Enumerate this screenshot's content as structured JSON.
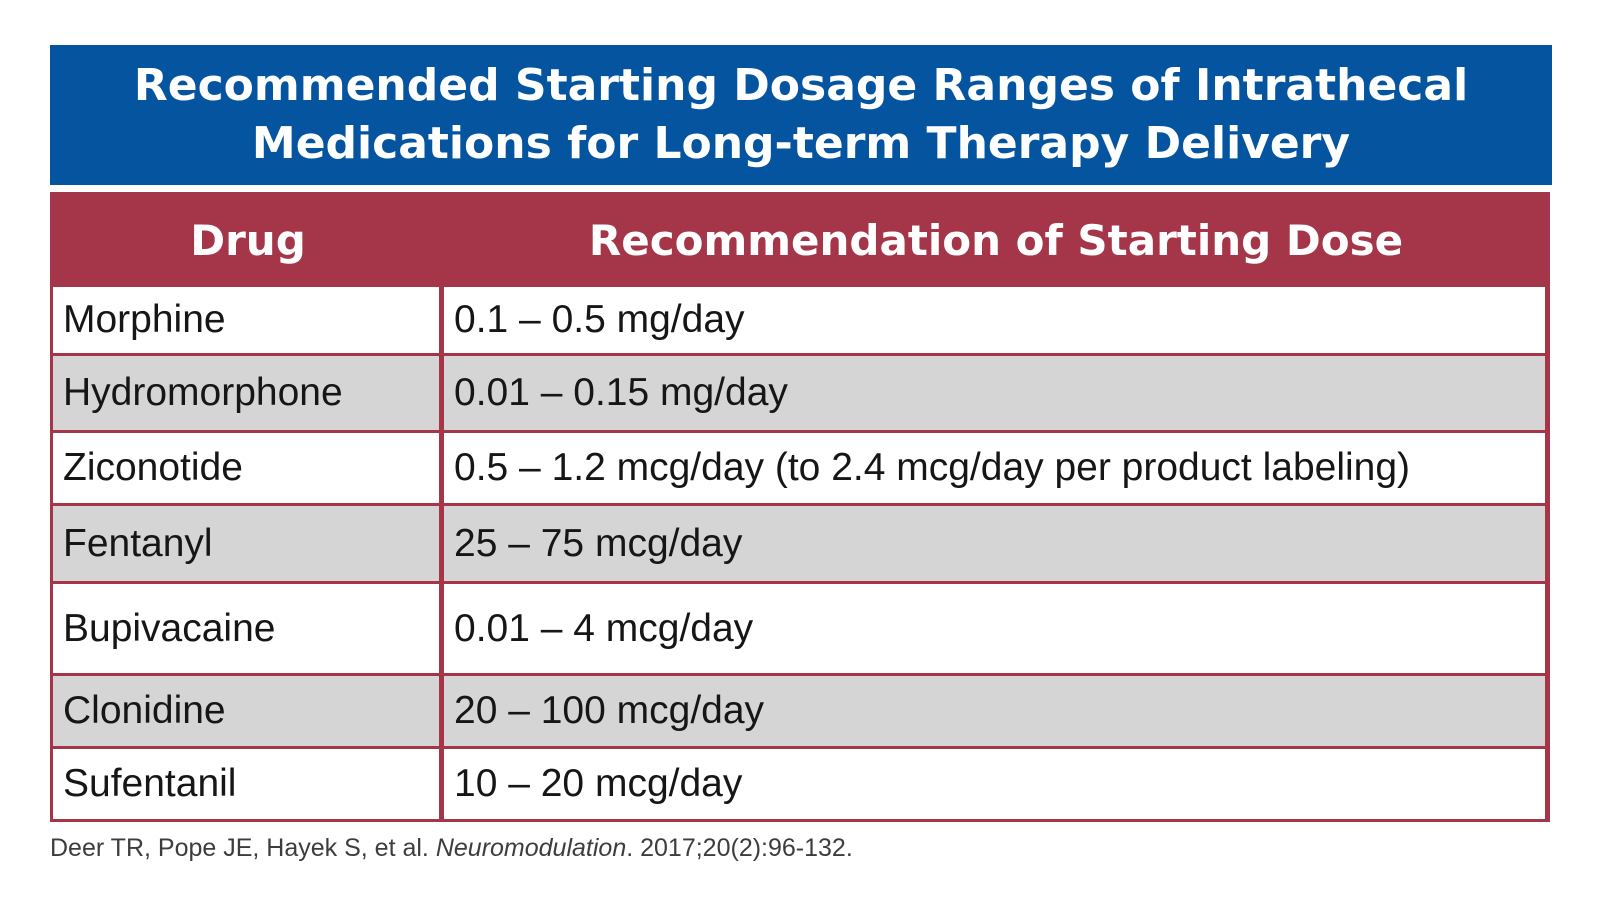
{
  "title": {
    "line1": "Recommended Starting Dosage Ranges of Intrathecal",
    "line2": "Medications for Long-term Therapy Delivery"
  },
  "table": {
    "headers": {
      "drug": "Drug",
      "dose": "Recommendation of Starting Dose"
    },
    "rows": [
      {
        "drug": "Morphine",
        "dose": "0.1 – 0.5 mg/day"
      },
      {
        "drug": "Hydromorphone",
        "dose": "0.01 – 0.15 mg/day"
      },
      {
        "drug": "Ziconotide",
        "dose": "0.5 – 1.2 mcg/day (to 2.4 mcg/day per product labeling)"
      },
      {
        "drug": "Fentanyl",
        "dose": "25 – 75 mcg/day"
      },
      {
        "drug": "Bupivacaine",
        "dose": "0.01 – 4 mcg/day"
      },
      {
        "drug": "Clonidine",
        "dose": "20 – 100 mcg/day"
      },
      {
        "drug": "Sufentanil",
        "dose": "10 – 20 mcg/day"
      }
    ]
  },
  "citation": {
    "authors": "Deer TR, Pope JE, Hayek S, et al.",
    "journal": "Neuromodulation",
    "details": ". 2017;20(2):96-132."
  },
  "colors": {
    "banner": "#0554a0",
    "header": "#a53649",
    "grey_row": "#d5d5d5"
  }
}
